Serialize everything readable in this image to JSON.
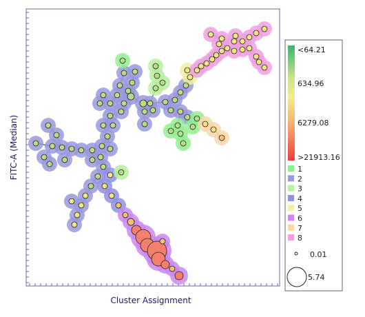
{
  "chart_data": {
    "type": "scatter",
    "subtype": "minimum-spanning-tree",
    "xlabel": "Cluster Assignment",
    "ylabel": "FITC-A (Median)",
    "grid": false,
    "color_legend": {
      "labels": [
        "<64.21",
        "634.96",
        "6279.08",
        ">21913.16"
      ],
      "gradient_colors": [
        "#3cb371",
        "#f0e68c",
        "#f4a460",
        "#f04040"
      ]
    },
    "cluster_legend": [
      {
        "label": "1",
        "color": "#90ee90"
      },
      {
        "label": "2",
        "color": "#9999dd"
      },
      {
        "label": "3",
        "color": "#b8f0a0"
      },
      {
        "label": "4",
        "color": "#9090e8"
      },
      {
        "label": "5",
        "color": "#f0f0a0"
      },
      {
        "label": "6",
        "color": "#cc88ee"
      },
      {
        "label": "7",
        "color": "#f8d8a8"
      },
      {
        "label": "8",
        "color": "#f0a0e0"
      }
    ],
    "size_legend": [
      {
        "label": "0.01",
        "value": 0.01
      },
      {
        "label": "5.74",
        "value": 5.74
      }
    ]
  }
}
